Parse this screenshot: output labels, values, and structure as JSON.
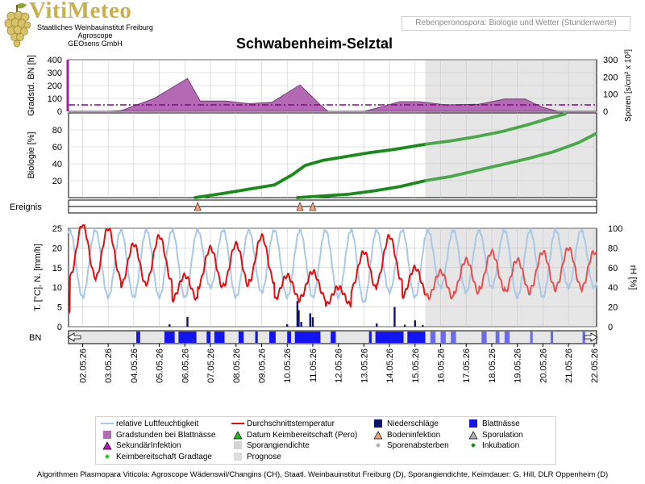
{
  "brand": {
    "name": "VitiMeteo",
    "lines": [
      "Staatliches Weinbauinstitut Freiburg",
      "Agroscope",
      "GEOsens GmbH"
    ]
  },
  "header_box": "Rebenperonospora: Biologie und Wetter (Stundenwerte)",
  "title": "Schwabenheim-Selztal",
  "footer": "Algorithmen Plasmopara Viticola: Agroscope Wädenswil/Changins (CH), Staatl. Weinbauinstitut Freiburg (D), Sporangiendichte, Keimdauer: G. Hill, DLR Oppenheim (D)",
  "colors": {
    "gradstunden": "#b469b4",
    "biologie": "#1a8a1a",
    "temp": "#e01010",
    "rh": "#a8c8e6",
    "niederschlag": "#10106e",
    "blattnaesse": "#1414f0",
    "prognose_shade": "#e6e6e6",
    "dashline": "#8a008a",
    "bodeninfektion": "#f0a078"
  },
  "legend": [
    {
      "label": "relative Luftfeuchtigkeit",
      "icon": "line-rh"
    },
    {
      "label": "Durchschnittstemperatur",
      "icon": "line-temp"
    },
    {
      "label": "Niederschläge",
      "icon": "square-navy"
    },
    {
      "label": "Blattnässe",
      "icon": "square-blue"
    },
    {
      "label": "Gradstunden bei Blattnässe",
      "icon": "square-purple"
    },
    {
      "label": "Datum Keimbereitschaft (Pero)",
      "icon": "triangle-green"
    },
    {
      "label": "Bodeninfektion",
      "icon": "triangle-salmon"
    },
    {
      "label": "Sporulation",
      "icon": "triangle-gray"
    },
    {
      "label": "SekundärInfektion",
      "icon": "triangle-magenta"
    },
    {
      "label": "Sporangiendichte",
      "icon": "square-lightgray"
    },
    {
      "label": "Sporenabsterben",
      "icon": "diamond-gray"
    },
    {
      "label": "Inkubation",
      "icon": "diamond-green"
    },
    {
      "label": "Keimbereitschaft Gradtage",
      "icon": "diamond-lime"
    },
    {
      "label": "Prognose",
      "icon": "square-prognose"
    }
  ],
  "chart_data": {
    "type": "line",
    "x_dates": [
      "02.05.26",
      "03.05.26",
      "04.05.26",
      "05.05.26",
      "06.05.26",
      "07.05.26",
      "08.05.26",
      "09.05.26",
      "10.05.26",
      "11.05.26",
      "12.05.26",
      "13.05.26",
      "14.05.26",
      "15.05.26",
      "16.05.26",
      "17.05.26",
      "18.05.26",
      "19.05.26",
      "20.05.26",
      "21.05.26",
      "22.05.26"
    ],
    "x_range_days": [
      0.45,
      21.1
    ],
    "prognose_start_day": 14.4,
    "panels": {
      "gradstunden": {
        "ylabel_left": "Gradstd. BN [h]",
        "ylabel_right": "Sporen [s/cm² x 10³]",
        "ylim_left": [
          0,
          400
        ],
        "yticks_left": [
          "0",
          "100",
          "200",
          "300",
          "400"
        ],
        "ylim_right": [
          0,
          300
        ],
        "yticks_right": [
          "0",
          "100",
          "200",
          "300"
        ],
        "threshold_left": 50,
        "series_left": [
          [
            0.45,
            0
          ],
          [
            2.0,
            0
          ],
          [
            2.5,
            5
          ],
          [
            3.8,
            100
          ],
          [
            5.1,
            255
          ],
          [
            5.6,
            80
          ],
          [
            6.6,
            80
          ],
          [
            7.5,
            60
          ],
          [
            8.4,
            70
          ],
          [
            9.5,
            205
          ],
          [
            10.3,
            50
          ],
          [
            10.6,
            0
          ],
          [
            12.0,
            0
          ],
          [
            12.6,
            30
          ],
          [
            13.4,
            75
          ],
          [
            14.2,
            75
          ],
          [
            15.2,
            50
          ],
          [
            16.5,
            55
          ],
          [
            17.5,
            95
          ],
          [
            18.3,
            95
          ],
          [
            19.0,
            30
          ],
          [
            19.6,
            0
          ],
          [
            21.1,
            0
          ]
        ]
      },
      "biologie": {
        "ylabel": "Biologie [%]",
        "ylim": [
          0,
          100
        ],
        "yticks": [
          "20",
          "40",
          "60",
          "80"
        ],
        "series": [
          {
            "name": "",
            "points": [
              [
                5.4,
                0
              ],
              [
                6.5,
                5
              ],
              [
                7.5,
                10
              ],
              [
                8.5,
                15
              ],
              [
                9.2,
                27
              ],
              [
                9.7,
                38
              ],
              [
                10.4,
                44
              ],
              [
                11.2,
                48
              ],
              [
                12.2,
                53
              ],
              [
                13.2,
                57
              ],
              [
                14.4,
                63
              ],
              [
                15.4,
                67
              ],
              [
                16.4,
                72
              ],
              [
                17.4,
                78
              ],
              [
                18.4,
                86
              ],
              [
                19.4,
                95
              ],
              [
                19.9,
                99
              ]
            ]
          },
          {
            "name": "",
            "points": [
              [
                9.4,
                0
              ],
              [
                10.4,
                2
              ],
              [
                11.4,
                4
              ],
              [
                12.4,
                8
              ],
              [
                13.4,
                13
              ],
              [
                14.4,
                20
              ],
              [
                15.4,
                25
              ],
              [
                16.4,
                32
              ],
              [
                17.4,
                39
              ],
              [
                18.4,
                46
              ],
              [
                19.4,
                54
              ],
              [
                20.4,
                65
              ],
              [
                21.1,
                76
              ]
            ]
          }
        ]
      },
      "ereignis": {
        "ylabel": "Ereignis",
        "bodeninfektion_days": [
          5.5,
          9.5,
          10.0
        ]
      },
      "wetter": {
        "ylabel_left": "T. [°C], N. [mm/h]",
        "ylabel_right": "rH [%]",
        "ylim_left": [
          0,
          25
        ],
        "yticks_left": [
          "0",
          "5",
          "10",
          "15",
          "20",
          "25"
        ],
        "ylim_right": [
          0,
          100
        ],
        "yticks_right": [
          "0",
          "20",
          "40",
          "60",
          "80",
          "100"
        ],
        "temp_daily": [
          [
            0.45,
            7
          ],
          [
            1,
            26
          ],
          [
            2,
            25
          ],
          [
            3,
            21
          ],
          [
            4,
            23
          ],
          [
            5,
            13
          ],
          [
            6,
            20
          ],
          [
            7,
            21
          ],
          [
            8,
            23
          ],
          [
            9,
            13
          ],
          [
            10,
            14
          ],
          [
            11,
            10
          ],
          [
            12,
            19
          ],
          [
            13,
            23
          ],
          [
            14,
            15
          ],
          [
            15,
            14
          ],
          [
            16,
            17
          ],
          [
            17,
            19
          ],
          [
            18,
            17
          ],
          [
            19,
            19
          ],
          [
            20,
            20
          ],
          [
            21,
            19
          ]
        ],
        "rh_daily": [
          [
            0.45,
            28
          ],
          [
            1,
            30
          ],
          [
            2,
            30
          ],
          [
            3,
            30
          ],
          [
            4,
            30
          ],
          [
            5,
            30
          ],
          [
            6,
            40
          ],
          [
            7,
            30
          ],
          [
            8,
            35
          ],
          [
            9,
            30
          ],
          [
            10,
            30
          ],
          [
            11,
            30
          ],
          [
            12,
            25
          ],
          [
            13,
            35
          ],
          [
            14,
            30
          ],
          [
            15,
            40
          ],
          [
            16,
            35
          ],
          [
            17,
            40
          ],
          [
            18,
            30
          ],
          [
            19,
            30
          ],
          [
            20,
            40
          ],
          [
            21,
            40
          ]
        ],
        "rain_bars": [
          [
            4.4,
            0.6
          ],
          [
            5.1,
            2.5
          ],
          [
            9.0,
            0.6
          ],
          [
            9.4,
            6.5
          ],
          [
            9.45,
            4.2
          ],
          [
            9.55,
            1.2
          ],
          [
            9.9,
            3.4
          ],
          [
            10.0,
            2.4
          ],
          [
            12.5,
            0.8
          ],
          [
            13.2,
            5.0
          ],
          [
            13.6,
            0.5
          ],
          [
            14.0,
            1.6
          ],
          [
            14.3,
            0.4
          ]
        ]
      },
      "bn": {
        "ylabel": "BN",
        "segments": [
          [
            3.1,
            3.25
          ],
          [
            4.2,
            4.6
          ],
          [
            4.75,
            5.45
          ],
          [
            5.85,
            6.0
          ],
          [
            6.15,
            6.55
          ],
          [
            7.1,
            7.3
          ],
          [
            7.75,
            7.85
          ],
          [
            8.3,
            8.55
          ],
          [
            9.0,
            9.15
          ],
          [
            9.3,
            10.3
          ],
          [
            10.7,
            10.9
          ],
          [
            12.2,
            12.3
          ],
          [
            12.45,
            13.55
          ],
          [
            13.7,
            14.4
          ],
          [
            14.6,
            14.8
          ],
          [
            15.0,
            15.2
          ],
          [
            15.4,
            15.6
          ],
          [
            16.6,
            16.8
          ],
          [
            17.15,
            17.3
          ],
          [
            17.5,
            17.7
          ],
          [
            18.5,
            18.6
          ],
          [
            19.3,
            19.4
          ],
          [
            20.55,
            20.65
          ]
        ]
      }
    }
  }
}
